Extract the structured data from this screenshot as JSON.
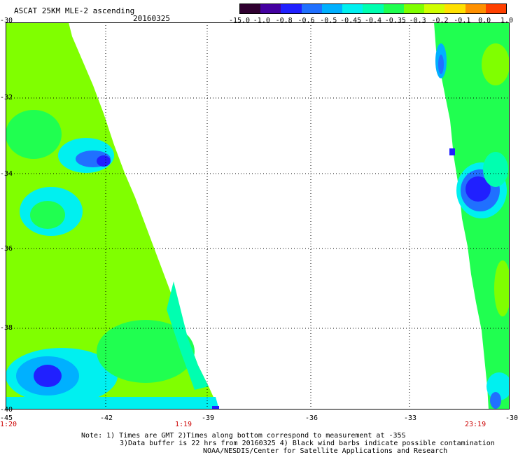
{
  "header": {
    "title": "ASCAT 25KM MLE-2 ascending",
    "date": "20160325"
  },
  "colorbar": {
    "colors": [
      "#300030",
      "#4400a0",
      "#2020ff",
      "#2070ff",
      "#00b0ff",
      "#00f0f0",
      "#00ffb0",
      "#20ff50",
      "#80ff00",
      "#d0ff00",
      "#ffe000",
      "#ff9000",
      "#ff4000"
    ],
    "labels": [
      "-15.0",
      "-1.0",
      "-0.8",
      "-0.6",
      "-0.5",
      "-0.45",
      "-0.4",
      "-0.35",
      "-0.3",
      "-0.2",
      "-0.1",
      "0.0",
      "1.0"
    ]
  },
  "axes": {
    "y_ticks": [
      "-30",
      "-32",
      "-34",
      "-36",
      "-38",
      "-40"
    ],
    "x_ticks": [
      "-45",
      "-42",
      "-39",
      "-36",
      "-33",
      "-30"
    ],
    "times": [
      "1:20",
      "1:19",
      "23:19"
    ]
  },
  "notes": [
    "Note: 1) Times are GMT 2)Times along bottom correspond to measurement at -35S",
    "3)Data buffer is 22 hrs from 20160325 4) Black wind barbs indicate possible contamination",
    "NOAA/NESDIS/Center for Satellite Applications and Research"
  ]
}
